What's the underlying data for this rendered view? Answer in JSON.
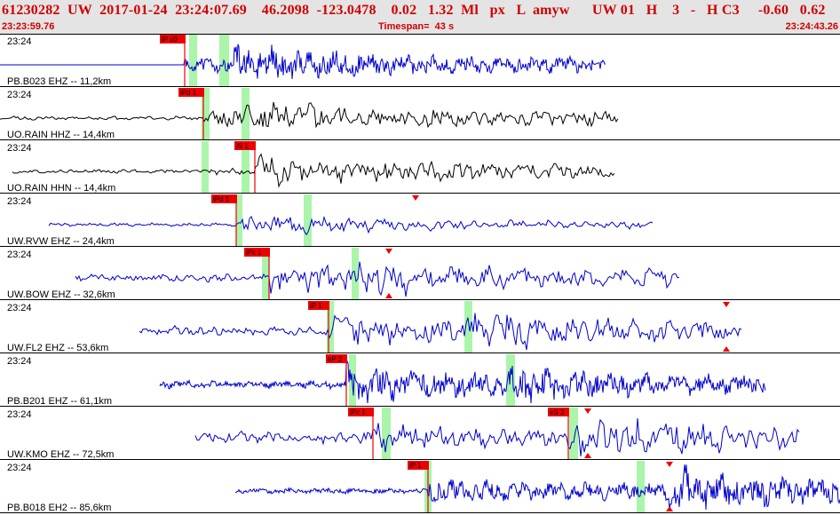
{
  "header": {
    "title": "61230282  UW  2017-01-24  23:24:07.69    46.2098  -123.0478    0.02   1.32  Ml   px   L  amyw      UW 01   H    3   -   H C3     -0.60   0.62",
    "start_time": "23:23:59.76",
    "timespan": "Timespan=  43 s",
    "end_time": "23:24:43.26"
  },
  "colors": {
    "blue": "#0000cc",
    "black": "#000000",
    "pick_red": "#ee0000",
    "window_green": "#aaf5aa",
    "header_red": "#d10000"
  },
  "traces": [
    {
      "time_label": "23:24",
      "station": "PB.B023 EHZ -- 11,2km",
      "color": "blue",
      "start": 0,
      "end": 682,
      "p_on": 208,
      "s_on": 262,
      "noise": 3,
      "p_amp": 10,
      "s_amp": 22,
      "seed": 11,
      "step": 1,
      "flat": true,
      "picks": [
        {
          "label": "iP c0",
          "x": 208
        }
      ],
      "windows": [
        [
          213,
          222
        ],
        [
          247,
          258
        ]
      ],
      "triangles": []
    },
    {
      "time_label": "23:24",
      "station": "UO.RAIN HHZ -- 14,4km",
      "color": "black",
      "start": 0,
      "end": 697,
      "p_on": 229,
      "s_on": 275,
      "noise": 2,
      "p_amp": 12,
      "s_amp": 20,
      "seed": 23,
      "step": 2,
      "picks": [
        {
          "label": "iPd 1",
          "x": 229
        }
      ],
      "windows": [
        [
          227,
          236
        ],
        [
          272,
          281
        ]
      ],
      "triangles": []
    },
    {
      "time_label": "23:24",
      "station": "UO.RAIN HHN -- 14,4km",
      "color": "black",
      "start": 14,
      "end": 692,
      "p_on": 229,
      "s_on": 287,
      "noise": 2,
      "p_amp": 5,
      "s_amp": 20,
      "seed": 37,
      "step": 2,
      "picks": [
        {
          "label": "iS 1",
          "x": 287
        }
      ],
      "windows": [
        [
          227,
          235
        ],
        [
          272,
          281
        ]
      ],
      "triangles": []
    },
    {
      "time_label": "23:24",
      "station": "UW.RVW EHZ -- 24,4km",
      "color": "blue",
      "start": 55,
      "end": 735,
      "p_on": 266,
      "s_on": 345,
      "noise": 2,
      "p_amp": 14,
      "s_amp": 10,
      "seed": 41,
      "step": 2,
      "picks": [
        {
          "label": "iPd 1",
          "x": 266
        }
      ],
      "windows": [
        [
          266,
          273
        ],
        [
          342,
          351
        ]
      ],
      "triangles": [
        {
          "x": 468,
          "dir": "down"
        }
      ]
    },
    {
      "time_label": "23:24",
      "station": "UW.BOW EHZ -- 32,6km",
      "color": "blue",
      "start": 85,
      "end": 765,
      "p_on": 303,
      "s_on": 400,
      "noise": 4,
      "p_amp": 20,
      "s_amp": 22,
      "seed": 53,
      "step": 2,
      "picks": [
        {
          "label": "iPc 1",
          "x": 303
        }
      ],
      "windows": [
        [
          295,
          303
        ],
        [
          396,
          404
        ]
      ],
      "triangles": [
        {
          "x": 438,
          "dir": "down"
        },
        {
          "x": 438,
          "dir": "up"
        }
      ]
    },
    {
      "time_label": "23:24",
      "station": "UW.FL2 EHZ -- 53,6km",
      "color": "blue",
      "start": 157,
      "end": 836,
      "p_on": 370,
      "s_on": 525,
      "noise": 5,
      "p_amp": 20,
      "s_amp": 25,
      "seed": 67,
      "step": 2,
      "picks": [
        {
          "label": "iP 1",
          "x": 370
        }
      ],
      "windows": [
        [
          368,
          376
        ],
        [
          523,
          532
        ]
      ],
      "triangles": [
        {
          "x": 818,
          "dir": "down"
        },
        {
          "x": 818,
          "dir": "up"
        }
      ]
    },
    {
      "time_label": "23:24",
      "station": "PB.B201 EHZ -- 61,1km",
      "color": "blue",
      "start": 180,
      "end": 862,
      "p_on": 390,
      "s_on": 572,
      "noise": 4,
      "p_amp": 24,
      "s_amp": 22,
      "seed": 79,
      "step": 1,
      "picks": [
        {
          "label": "eP 2",
          "x": 390
        }
      ],
      "windows": [
        [
          393,
          401
        ],
        [
          570,
          580
        ]
      ],
      "triangles": []
    },
    {
      "time_label": "23:24",
      "station": "UW.KMO EHZ -- 72,5km",
      "color": "blue",
      "start": 220,
      "end": 900,
      "p_on": 420,
      "s_on": 640,
      "noise": 6,
      "p_amp": 16,
      "s_amp": 26,
      "seed": 83,
      "step": 2,
      "picks": [
        {
          "label": "iPc 1",
          "x": 420
        },
        {
          "label": "eS 2",
          "x": 640
        }
      ],
      "windows": [
        [
          430,
          440
        ],
        [
          641,
          651
        ]
      ],
      "triangles": [
        {
          "x": 662,
          "dir": "down"
        },
        {
          "x": 662,
          "dir": "up"
        }
      ]
    },
    {
      "time_label": "23:24",
      "station": "PB.B018 EH2 -- 85,6km",
      "color": "blue",
      "start": 265,
      "end": 946,
      "p_on": 482,
      "s_on": 752,
      "noise": 3,
      "p_amp": 16,
      "s_amp": 26,
      "seed": 97,
      "step": 1,
      "picks": [
        {
          "label": "iP 1",
          "x": 482
        }
      ],
      "windows": [
        [
          478,
          486
        ],
        [
          717,
          726
        ]
      ],
      "triangles": [
        {
          "x": 754,
          "dir": "down"
        },
        {
          "x": 754,
          "dir": "up"
        }
      ]
    }
  ]
}
